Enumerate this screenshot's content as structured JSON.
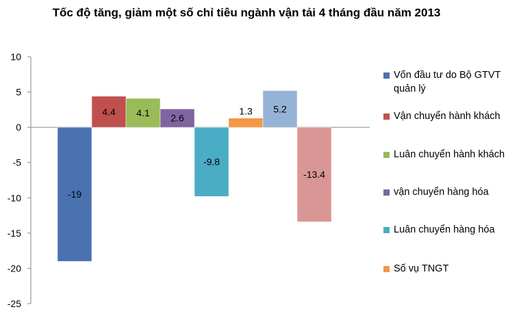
{
  "chart_data": {
    "type": "bar",
    "title": "Tốc độ tăng, giảm một số chỉ tiêu ngành vận tải 4 tháng đầu năm 2013",
    "ylim": [
      -25,
      10
    ],
    "yticks": [
      10,
      5,
      0,
      -5,
      -10,
      -15,
      -20,
      -25
    ],
    "grid": false,
    "legend_position": "right",
    "series": [
      {
        "name": "Vốn đầu tư do Bộ GTVT quản lý",
        "values": [
          -19
        ],
        "labels": [
          "-19"
        ],
        "color": "#4a72b0"
      },
      {
        "name": "Vận chuyển hành khách",
        "values": [
          4.4
        ],
        "labels": [
          "4.4"
        ],
        "color": "#c0504d"
      },
      {
        "name": "Luân chuyển hành khách",
        "values": [
          4.1
        ],
        "labels": [
          "4.1"
        ],
        "color": "#9bbb59"
      },
      {
        "name": "vận chuyển hàng hóa",
        "values": [
          2.6
        ],
        "labels": [
          "2.6"
        ],
        "color": "#8064a2"
      },
      {
        "name": "Luân chuyển hàng hóa",
        "values": [
          -9.8
        ],
        "labels": [
          "-9.8"
        ],
        "color": "#4bacc6"
      },
      {
        "name": "Số vụ TNGT",
        "values": [
          1.3
        ],
        "labels": [
          "1.3"
        ],
        "color": "#f79646"
      },
      {
        "name": "",
        "values": [
          5.2
        ],
        "labels": [
          "5.2"
        ],
        "color": "#95b3d7"
      },
      {
        "name": "",
        "values": [
          -13.4
        ],
        "labels": [
          "-13.4"
        ],
        "color": "#d99694"
      }
    ]
  }
}
